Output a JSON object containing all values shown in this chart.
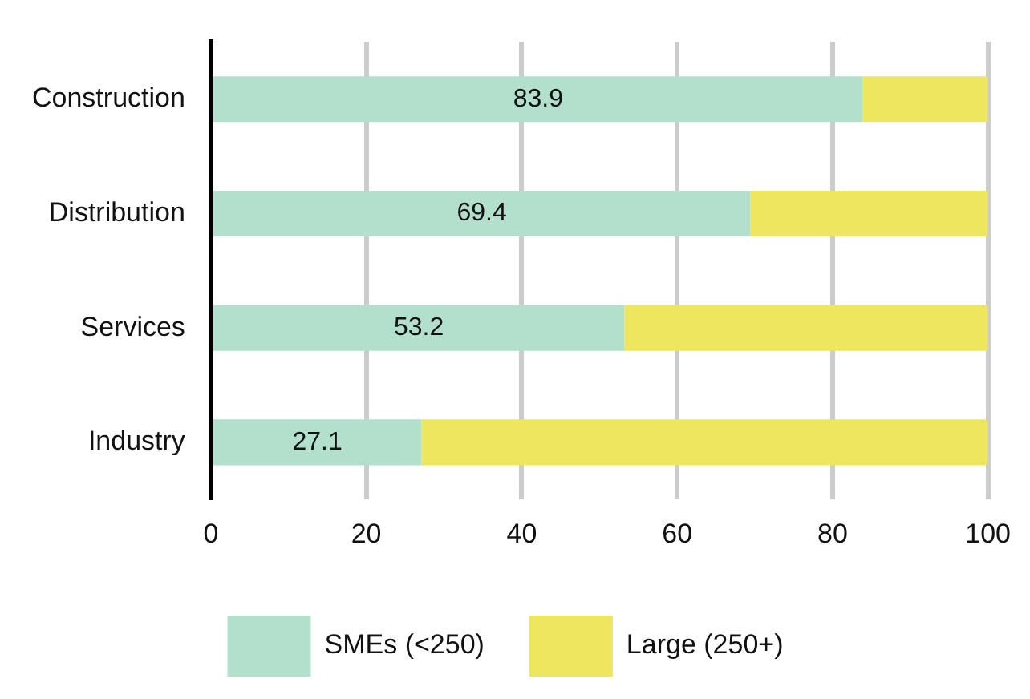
{
  "chart_data": {
    "type": "bar",
    "orientation": "horizontal",
    "stacked": true,
    "categories": [
      "Construction",
      "Distribution",
      "Services",
      "Industry"
    ],
    "series": [
      {
        "name": "SMEs (<250)",
        "color": "#b3e0cc",
        "values": [
          83.9,
          69.4,
          53.2,
          27.1
        ],
        "value_labels": [
          "83.9",
          "69.4",
          "53.2",
          "27.1"
        ]
      },
      {
        "name": "Large (250+)",
        "color": "#ede65e",
        "values": [
          16.1,
          30.6,
          46.8,
          72.9
        ]
      }
    ],
    "xlim": [
      0,
      100
    ],
    "xticks": [
      0,
      20,
      40,
      60,
      80,
      100
    ],
    "grid": "x",
    "legend": "bottom"
  }
}
